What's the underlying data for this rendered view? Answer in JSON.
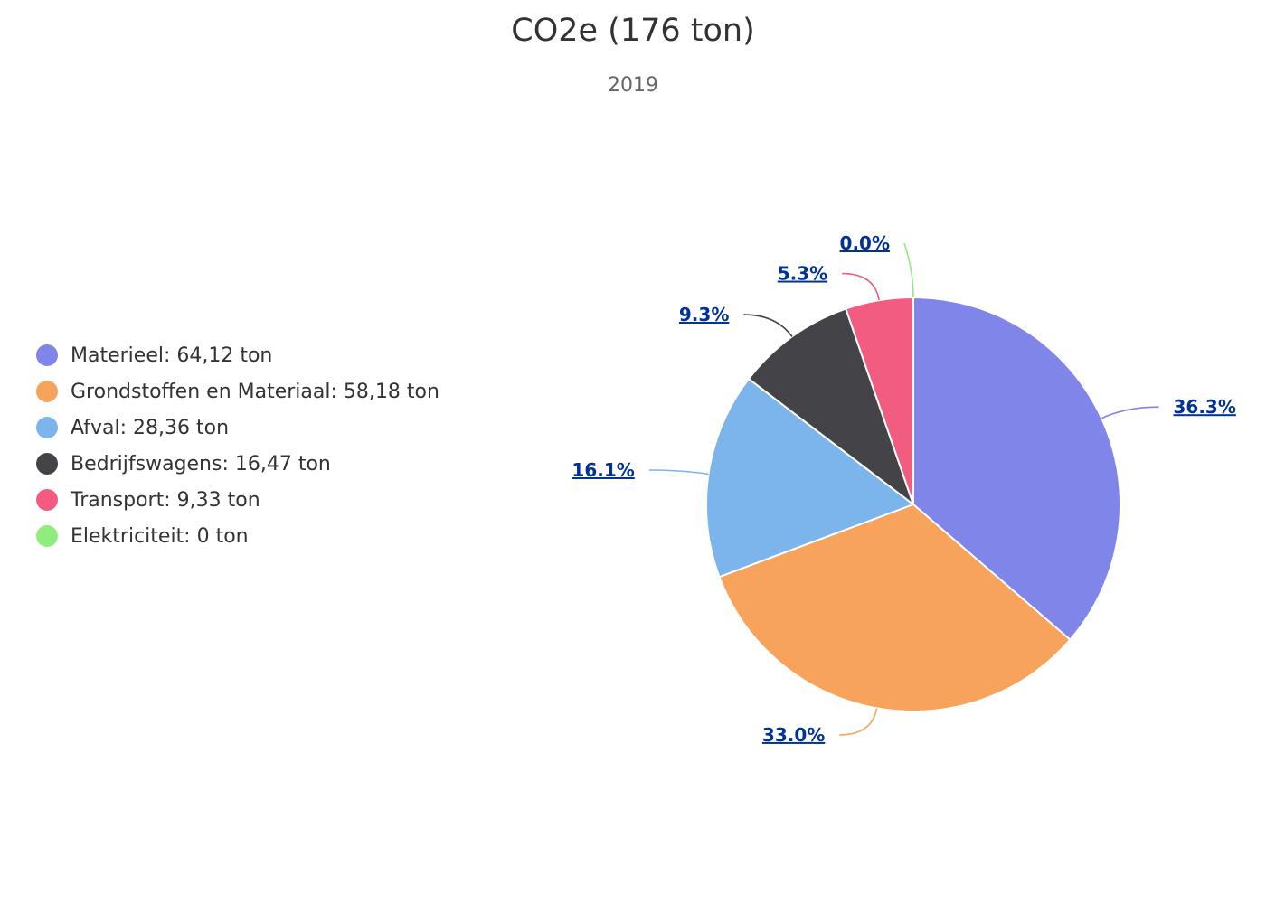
{
  "chart_data": {
    "type": "pie",
    "title": "CO2e (176 ton)",
    "subtitle": "2019",
    "legend_position": "left",
    "slices": [
      {
        "name": "Materieel",
        "legend": "Materieel: 64,12 ton",
        "value": 64.12,
        "percent_label": "36.3%",
        "color": "#8085e9"
      },
      {
        "name": "Grondstoffen en Materiaal",
        "legend": "Grondstoffen en Materiaal: 58,18 ton",
        "value": 58.18,
        "percent_label": "33.0%",
        "color": "#f7a35c"
      },
      {
        "name": "Afval",
        "legend": "Afval: 28,36 ton",
        "value": 28.36,
        "percent_label": "16.1%",
        "color": "#7cb5ec"
      },
      {
        "name": "Bedrijfswagens",
        "legend": "Bedrijfswagens: 16,47 ton",
        "value": 16.47,
        "percent_label": "9.3%",
        "color": "#434348"
      },
      {
        "name": "Transport",
        "legend": "Transport: 9,33 ton",
        "value": 9.33,
        "percent_label": "5.3%",
        "color": "#f15c80"
      },
      {
        "name": "Elektriciteit",
        "legend": "Elektriciteit: 0 ton",
        "value": 0,
        "percent_label": "0.0%",
        "color": "#90ed7d"
      }
    ]
  }
}
